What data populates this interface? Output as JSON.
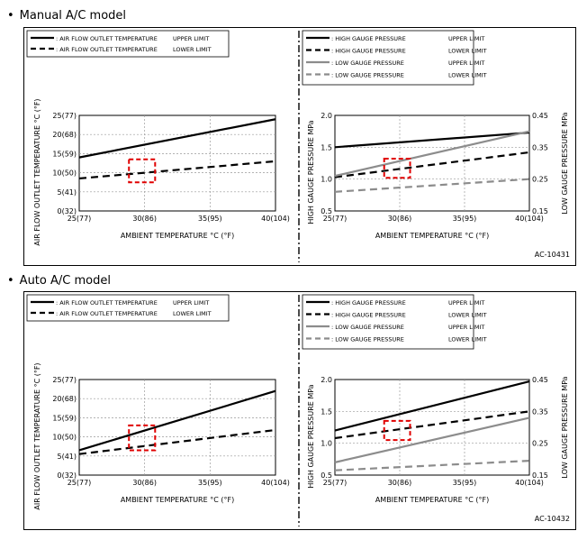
{
  "sections": [
    {
      "title": "Manual A/C model",
      "figure_id": "AC-10431",
      "left_legend": [
        {
          "marker": ": AIR FLOW OUTLET TEMPERATURE",
          "limit": "UPPER LIMIT",
          "style": "solid-black"
        },
        {
          "marker": ": AIR FLOW OUTLET TEMPERATURE",
          "limit": "LOWER LIMIT",
          "style": "dashed-black"
        }
      ],
      "right_legend": [
        {
          "marker": ": HIGH GAUGE PRESSURE",
          "limit": "UPPER LIMIT",
          "style": "solid-black"
        },
        {
          "marker": ": HIGH GAUGE PRESSURE",
          "limit": "LOWER LIMIT",
          "style": "dashed-black"
        },
        {
          "marker": ": LOW GAUGE PRESSURE",
          "limit": "UPPER LIMIT",
          "style": "solid-gray"
        },
        {
          "marker": ": LOW GAUGE PRESSURE",
          "limit": "LOWER LIMIT",
          "style": "dashed-gray"
        }
      ]
    },
    {
      "title": "Auto A/C model",
      "figure_id": "AC-10432",
      "left_legend": [
        {
          "marker": ": AIR FLOW OUTLET TEMPERATURE",
          "limit": "UPPER LIMIT",
          "style": "solid-black"
        },
        {
          "marker": ": AIR FLOW OUTLET TEMPERATURE",
          "limit": "LOWER LIMIT",
          "style": "dashed-black"
        }
      ],
      "right_legend": [
        {
          "marker": ": HIGH GAUGE PRESSURE",
          "limit": "UPPER LIMIT",
          "style": "solid-black"
        },
        {
          "marker": ": HIGH GAUGE PRESSURE",
          "limit": "LOWER LIMIT",
          "style": "dashed-black"
        },
        {
          "marker": ": LOW GAUGE PRESSURE",
          "limit": "UPPER LIMIT",
          "style": "solid-gray"
        },
        {
          "marker": ": LOW GAUGE PRESSURE",
          "limit": "LOWER LIMIT",
          "style": "dashed-gray"
        }
      ]
    }
  ],
  "colors": {
    "line_black": "#000000",
    "line_gray": "#8c8c8c",
    "highlight": "#e00000",
    "grid": "#9a9a9a"
  },
  "chart_data": [
    {
      "type": "line",
      "title": "Manual A/C model - Air flow outlet temperature",
      "xlabel": "AMBIENT TEMPERATURE  °C  (°F)",
      "ylabel": "AIR FLOW OUTLET TEMPERATURE  °C  (°F)",
      "x": [
        25,
        40
      ],
      "xlim": [
        25,
        40
      ],
      "ylim": [
        0,
        25
      ],
      "x_ticks": [
        25,
        30,
        35,
        40
      ],
      "x_tick_labels": [
        "25(77)",
        "30(86)",
        "35(95)",
        "40(104)"
      ],
      "y_ticks": [
        0,
        5,
        10,
        15,
        20,
        25
      ],
      "y_tick_labels": [
        "0(32)",
        "5(41)",
        "10(50)",
        "15(59)",
        "20(68)",
        "25(77)"
      ],
      "series": [
        {
          "name": "AIR FLOW OUTLET TEMPERATURE UPPER LIMIT",
          "style": "solid-black",
          "values": [
            14,
            24
          ]
        },
        {
          "name": "AIR FLOW OUTLET TEMPERATURE LOWER LIMIT",
          "style": "dashed-black",
          "values": [
            8.5,
            13
          ]
        }
      ],
      "highlight_box": {
        "x": [
          28.8,
          30.8
        ],
        "y": [
          7.5,
          13.5
        ]
      }
    },
    {
      "type": "line",
      "title": "Manual A/C model - Gauge pressure",
      "xlabel": "AMBIENT TEMPERATURE  °C  (°F)",
      "ylabel": "HIGH GAUGE PRESSURE  MPa",
      "y2label": "LOW GAUGE PRESSURE  MPa",
      "x": [
        25,
        40
      ],
      "xlim": [
        25,
        40
      ],
      "ylim": [
        0.5,
        2.0
      ],
      "y2lim": [
        0.15,
        0.45
      ],
      "x_ticks": [
        25,
        30,
        35,
        40
      ],
      "x_tick_labels": [
        "25(77)",
        "30(86)",
        "35(95)",
        "40(104)"
      ],
      "y_ticks": [
        0.5,
        1.0,
        1.5,
        2.0
      ],
      "y_tick_labels": [
        "0.5",
        "1.0",
        "1.5",
        "2.0"
      ],
      "y2_ticks": [
        0.15,
        0.25,
        0.35,
        0.45
      ],
      "y2_tick_labels": [
        "0.15",
        "0.25",
        "0.35",
        "0.45"
      ],
      "series": [
        {
          "name": "HIGH GAUGE PRESSURE UPPER LIMIT",
          "axis": "left",
          "style": "solid-black",
          "values": [
            1.5,
            1.73
          ]
        },
        {
          "name": "HIGH GAUGE PRESSURE LOWER LIMIT",
          "axis": "left",
          "style": "dashed-black",
          "values": [
            1.03,
            1.42
          ]
        },
        {
          "name": "LOW GAUGE PRESSURE UPPER LIMIT",
          "axis": "right",
          "style": "solid-gray",
          "values": [
            0.26,
            0.4
          ]
        },
        {
          "name": "LOW GAUGE PRESSURE LOWER LIMIT",
          "axis": "right",
          "style": "dashed-gray",
          "values": [
            0.21,
            0.25
          ]
        }
      ],
      "highlight_box": {
        "x": [
          28.8,
          30.8
        ],
        "y": [
          1.02,
          1.32
        ]
      }
    },
    {
      "type": "line",
      "title": "Auto A/C model - Air flow outlet temperature",
      "xlabel": "AMBIENT TEMPERATURE  °C  (°F)",
      "ylabel": "AIR FLOW OUTLET TEMPERATURE  °C  (°F)",
      "x": [
        25,
        40
      ],
      "xlim": [
        25,
        40
      ],
      "ylim": [
        0,
        25
      ],
      "x_ticks": [
        25,
        30,
        35,
        40
      ],
      "x_tick_labels": [
        "25(77)",
        "30(86)",
        "35(95)",
        "40(104)"
      ],
      "y_ticks": [
        0,
        5,
        10,
        15,
        20,
        25
      ],
      "y_tick_labels": [
        "0(32)",
        "5(41)",
        "10(50)",
        "15(59)",
        "20(68)",
        "25(77)"
      ],
      "series": [
        {
          "name": "AIR FLOW OUTLET TEMPERATURE UPPER LIMIT",
          "style": "solid-black",
          "values": [
            6.5,
            22
          ]
        },
        {
          "name": "AIR FLOW OUTLET TEMPERATURE LOWER LIMIT",
          "style": "dashed-black",
          "values": [
            5.5,
            11.8
          ]
        }
      ],
      "highlight_box": {
        "x": [
          28.8,
          30.8
        ],
        "y": [
          6.5,
          13
        ]
      }
    },
    {
      "type": "line",
      "title": "Auto A/C model - Gauge pressure",
      "xlabel": "AMBIENT TEMPERATURE  °C  (°F)",
      "ylabel": "HIGH GAUGE PRESSURE  MPa",
      "y2label": "LOW GAUGE PRESSURE  MPa",
      "x": [
        25,
        40
      ],
      "xlim": [
        25,
        40
      ],
      "ylim": [
        0.5,
        2.0
      ],
      "y2lim": [
        0.15,
        0.45
      ],
      "x_ticks": [
        25,
        30,
        35,
        40
      ],
      "x_tick_labels": [
        "25(77)",
        "30(86)",
        "35(95)",
        "40(104)"
      ],
      "y_ticks": [
        0.5,
        1.0,
        1.5,
        2.0
      ],
      "y_tick_labels": [
        "0.5",
        "1.0",
        "1.5",
        "2.0"
      ],
      "y2_ticks": [
        0.15,
        0.25,
        0.35,
        0.45
      ],
      "y2_tick_labels": [
        "0.15",
        "0.25",
        "0.35",
        "0.45"
      ],
      "series": [
        {
          "name": "HIGH GAUGE PRESSURE UPPER LIMIT",
          "axis": "left",
          "style": "solid-black",
          "values": [
            1.2,
            1.97
          ]
        },
        {
          "name": "HIGH GAUGE PRESSURE LOWER LIMIT",
          "axis": "left",
          "style": "dashed-black",
          "values": [
            1.08,
            1.5
          ]
        },
        {
          "name": "LOW GAUGE PRESSURE UPPER LIMIT",
          "axis": "right",
          "style": "solid-gray",
          "values": [
            0.19,
            0.33
          ]
        },
        {
          "name": "LOW GAUGE PRESSURE LOWER LIMIT",
          "axis": "right",
          "style": "dashed-gray",
          "values": [
            0.165,
            0.195
          ]
        }
      ],
      "highlight_box": {
        "x": [
          28.8,
          30.8
        ],
        "y": [
          1.05,
          1.35
        ]
      }
    }
  ]
}
